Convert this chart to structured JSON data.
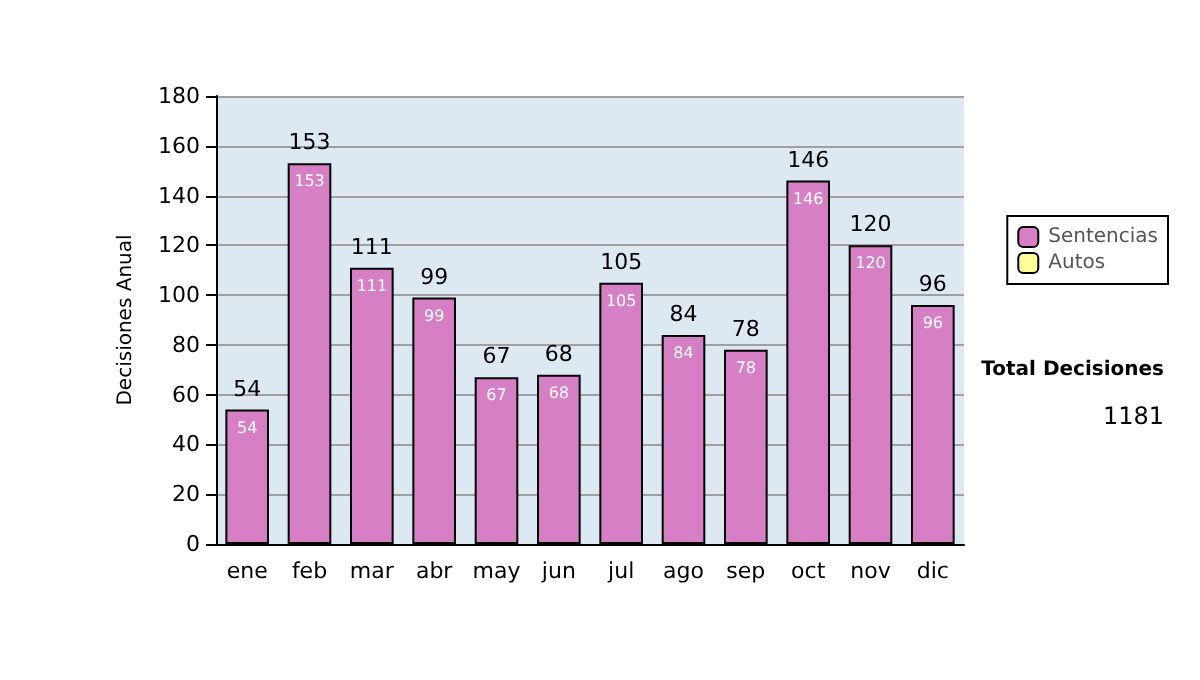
{
  "chart_data": {
    "type": "bar",
    "ylabel": "Decisiones Anual",
    "categories": [
      "ene",
      "feb",
      "mar",
      "abr",
      "may",
      "jun",
      "jul",
      "ago",
      "sep",
      "oct",
      "nov",
      "dic"
    ],
    "series": [
      {
        "name": "Sentencias",
        "color": "#d77fc4",
        "values": [
          54,
          153,
          111,
          99,
          67,
          68,
          105,
          84,
          78,
          146,
          120,
          96
        ],
        "value_labels": [
          "54",
          "153",
          "111",
          "99",
          "67",
          "68",
          "105",
          "84",
          "78",
          "146",
          "120",
          "96"
        ]
      },
      {
        "name": "Autos",
        "color": "#ffff99",
        "values": [
          0,
          0,
          0,
          0,
          0,
          0,
          0,
          0,
          0,
          0,
          0,
          0
        ]
      }
    ],
    "stacked": true,
    "totals": [
      "54",
      "153",
      "111",
      "99",
      "67",
      "68",
      "105",
      "84",
      "78",
      "146",
      "120",
      "96"
    ],
    "ylim": [
      0,
      180
    ],
    "yticks": [
      0,
      20,
      40,
      60,
      80,
      100,
      120,
      140,
      160,
      180
    ],
    "grid": "y",
    "legend": "right",
    "annotations": [
      "Total Decisiones",
      "1181"
    ]
  }
}
